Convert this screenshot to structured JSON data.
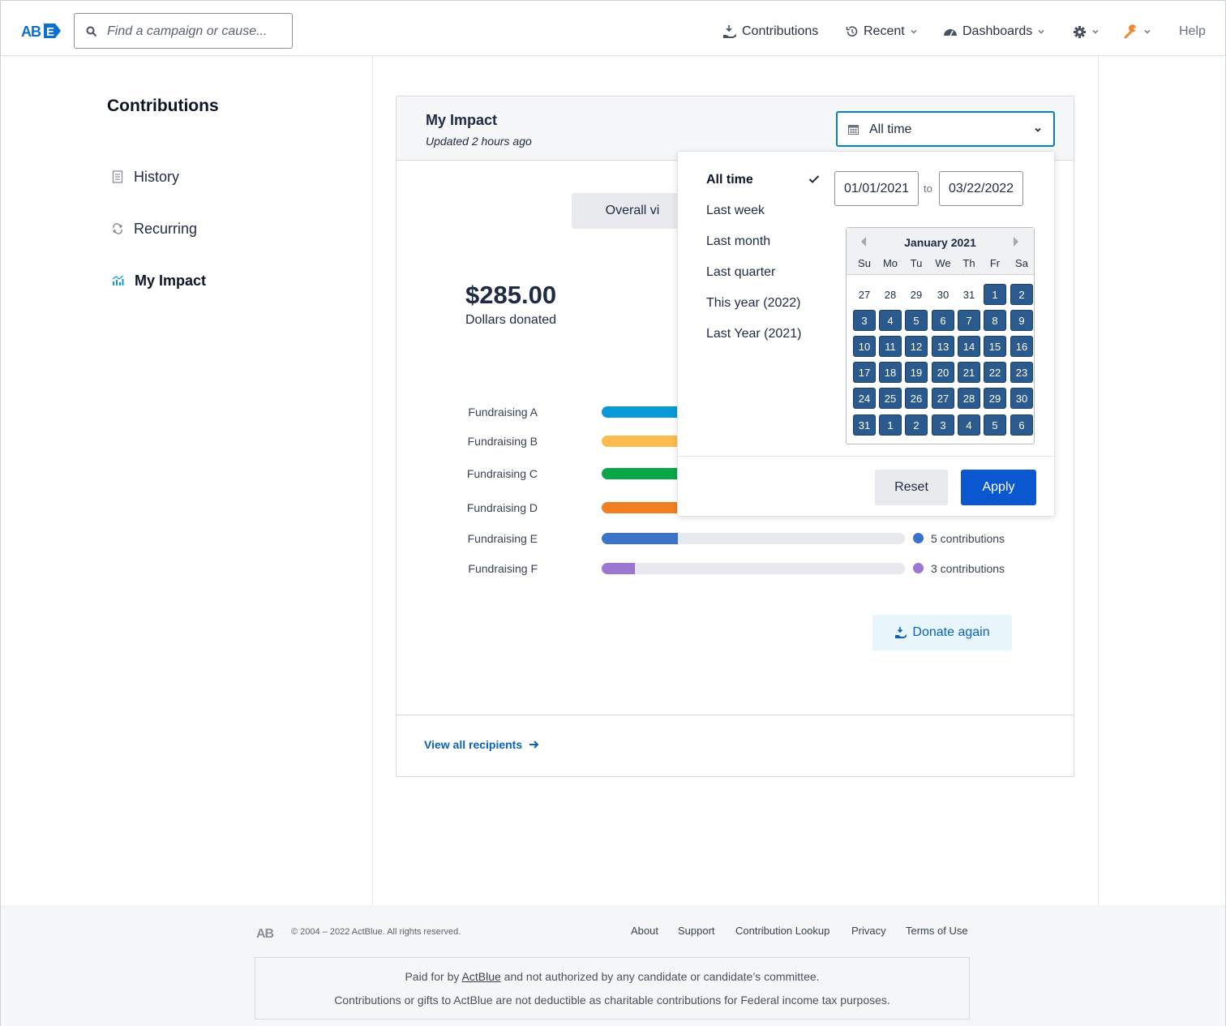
{
  "nav": {
    "logo_text": "AB",
    "search_placeholder": "Find a campaign or cause...",
    "contributions": "Contributions",
    "recent": "Recent",
    "dashboards": "Dashboards",
    "help": "Help"
  },
  "sidebar": {
    "title": "Contributions",
    "items": [
      {
        "label": "History",
        "icon": "document-icon"
      },
      {
        "label": "Recurring",
        "icon": "repeat-icon"
      },
      {
        "label": "My Impact",
        "icon": "chart-icon",
        "active": true
      }
    ]
  },
  "card": {
    "title": "My Impact",
    "updated": "Updated 2 hours ago",
    "range_value": "All time",
    "overall_button": "Overall vi",
    "amount": "$285.00",
    "amount_label": "Dollars donated",
    "donate_again": "Donate again",
    "view_all": "View all recipients",
    "bars": [
      {
        "name": "Fundraising A",
        "color": "#0a9ad8",
        "fraction": 0.25,
        "count": ""
      },
      {
        "name": "Fundraising B",
        "color": "#fbbd4f",
        "fraction": 0.25,
        "count": ""
      },
      {
        "name": "Fundraising C",
        "color": "#0ba54a",
        "fraction": 0.25,
        "count": ""
      },
      {
        "name": "Fundraising D",
        "color": "#f08023",
        "fraction": 0.25,
        "count": ""
      },
      {
        "name": "Fundraising E",
        "color": "#3a73c8",
        "fraction": 0.25,
        "count": "5 contributions"
      },
      {
        "name": "Fundraising F",
        "color": "#9c77cf",
        "fraction": 0.11,
        "count": "3 contributions"
      }
    ]
  },
  "dropdown": {
    "presets": [
      "All time",
      "Last week",
      "Last month",
      "Last quarter",
      "This year (2022)",
      "Last Year (2021)"
    ],
    "selected": "All time",
    "start_date": "01/01/2021",
    "end_date": "03/22/2022",
    "to_label": "to",
    "calendar": {
      "month": "January 2021",
      "weekdays": [
        "Su",
        "Mo",
        "Tu",
        "We",
        "Th",
        "Fr",
        "Sa"
      ],
      "weeks": [
        [
          "27",
          "28",
          "29",
          "30",
          "31",
          "1",
          "2"
        ],
        [
          "3",
          "4",
          "5",
          "6",
          "7",
          "8",
          "9"
        ],
        [
          "10",
          "11",
          "12",
          "13",
          "14",
          "15",
          "16"
        ],
        [
          "17",
          "18",
          "19",
          "20",
          "21",
          "22",
          "23"
        ],
        [
          "24",
          "25",
          "26",
          "27",
          "28",
          "29",
          "30"
        ],
        [
          "31",
          "1",
          "2",
          "3",
          "4",
          "5",
          "6"
        ]
      ],
      "leading_out_of_range": 5
    },
    "reset": "Reset",
    "apply": "Apply"
  },
  "footer": {
    "copyright": "© 2004 – 2022 ActBlue. All rights reserved.",
    "links": [
      "About",
      "Support",
      "Contribution Lookup",
      "Privacy",
      "Terms of Use"
    ],
    "disclaimer_prefix": "Paid for by",
    "disclaimer_link": "ActBlue",
    "disclaimer_suffix": "and not authorized by any candidate or candidate’s committee.",
    "tax_note": "Contributions or gifts to ActBlue are not deductible as charitable contributions for Federal income tax purposes."
  },
  "colors": {
    "brand_blue": "#0b57d0",
    "link_blue": "#0b62b6",
    "calendar_selected": "#2a5a8e",
    "focus_border": "#0a7fb8"
  }
}
